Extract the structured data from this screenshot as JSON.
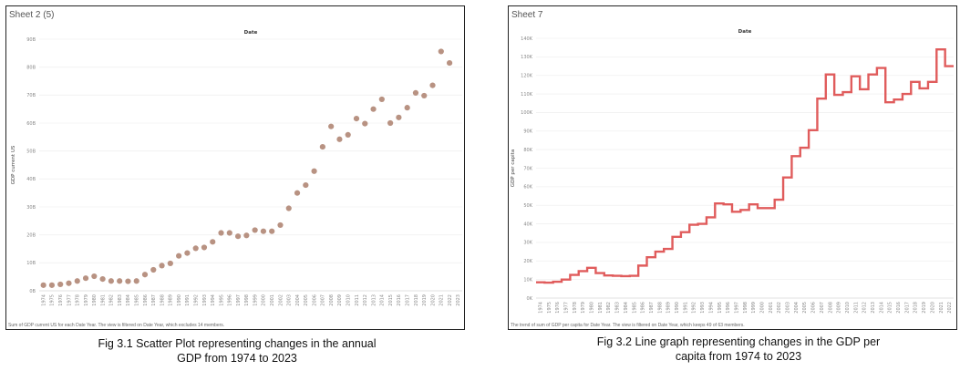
{
  "charts": [
    {
      "sheet_title": "Sheet 2 (5)",
      "footnote": "Sum of GDP current US for each Date Year. The view is filtered on Date Year, which excludes 14 members.",
      "caption_line1": "Fig 3.1 Scatter Plot representing changes in the annual",
      "caption_line2": "GDP from 1974 to 2023",
      "color": "#b89282"
    },
    {
      "sheet_title": "Sheet 7",
      "footnote": "The trend of sum of GDP per capita for Date Year. The view is filtered on Date Year, which keeps 49 of 63 members.",
      "caption_line1": "Fig 3.2 Line graph representing changes in the GDP per",
      "caption_line2": "capita from 1974 to 2023",
      "color": "#e05c5c"
    }
  ],
  "chart_data": [
    {
      "type": "scatter",
      "title": "Date",
      "ylabel": "GDP current US",
      "xlabel": "",
      "ylim": [
        0,
        90
      ],
      "yticks": [
        0,
        10,
        20,
        30,
        40,
        50,
        60,
        70,
        80,
        90
      ],
      "ytick_labels": [
        "0B",
        "10B",
        "20B",
        "30B",
        "40B",
        "50B",
        "60B",
        "70B",
        "80B",
        "90B"
      ],
      "categories": [
        "1974",
        "1975",
        "1976",
        "1977",
        "1978",
        "1979",
        "1980",
        "1981",
        "1982",
        "1983",
        "1984",
        "1985",
        "1986",
        "1987",
        "1988",
        "1989",
        "1990",
        "1991",
        "1992",
        "1993",
        "1994",
        "1995",
        "1996",
        "1997",
        "1998",
        "1999",
        "2000",
        "2001",
        "2002",
        "2003",
        "2004",
        "2005",
        "2006",
        "2007",
        "2008",
        "2009",
        "2010",
        "2011",
        "2012",
        "2013",
        "2014",
        "2015",
        "2016",
        "2017",
        "2018",
        "2019",
        "2020",
        "2021",
        "2022",
        "2023"
      ],
      "values": [
        2,
        2,
        2.3,
        2.7,
        3.5,
        4.5,
        5.2,
        4.2,
        3.5,
        3.5,
        3.4,
        3.5,
        5.8,
        7.5,
        9,
        9.8,
        12.5,
        13.5,
        15.2,
        15.5,
        17.5,
        20.7,
        20.7,
        19.5,
        19.8,
        21.7,
        21.3,
        21.3,
        23.5,
        29.5,
        35,
        37.8,
        42.8,
        51.5,
        58.8,
        54.2,
        55.8,
        61.6,
        59.8,
        65,
        68.5,
        60,
        62,
        65.5,
        70.8,
        69.8,
        73.5,
        85.6,
        81.5,
        null
      ],
      "grid": true
    },
    {
      "type": "line",
      "title": "Date",
      "ylabel": "GDP per capita",
      "xlabel": "",
      "ylim": [
        0,
        140
      ],
      "yticks": [
        0,
        10,
        20,
        30,
        40,
        50,
        60,
        70,
        80,
        90,
        100,
        110,
        120,
        130,
        140
      ],
      "ytick_labels": [
        "0K",
        "10K",
        "20K",
        "30K",
        "40K",
        "50K",
        "60K",
        "70K",
        "80K",
        "90K",
        "100K",
        "110K",
        "120K",
        "130K",
        "140K"
      ],
      "categories": [
        "1974",
        "1975",
        "1976",
        "1977",
        "1978",
        "1979",
        "1980",
        "1981",
        "1982",
        "1983",
        "1984",
        "1985",
        "1986",
        "1987",
        "1988",
        "1989",
        "1990",
        "1991",
        "1992",
        "1993",
        "1994",
        "1995",
        "1996",
        "1997",
        "1998",
        "1999",
        "2000",
        "2001",
        "2002",
        "2003",
        "2004",
        "2005",
        "2006",
        "2007",
        "2008",
        "2009",
        "2010",
        "2011",
        "2012",
        "2013",
        "2014",
        "2015",
        "2016",
        "2017",
        "2018",
        "2019",
        "2020",
        "2021",
        "2022"
      ],
      "values": [
        8.5,
        8.3,
        8.8,
        10,
        12.5,
        14.5,
        16.3,
        13.5,
        12.2,
        12,
        11.8,
        12,
        17.5,
        22,
        25,
        26.5,
        33,
        35.5,
        39.5,
        40,
        43.5,
        51,
        50.5,
        46.5,
        47.5,
        50.5,
        48.5,
        48.5,
        53,
        65,
        76.5,
        81,
        90.5,
        107.5,
        120.5,
        109.5,
        111,
        119.5,
        112.5,
        120.5,
        124,
        105.5,
        107,
        110,
        116.5,
        113,
        116.5,
        134,
        125
      ],
      "step": true,
      "grid": true
    }
  ]
}
